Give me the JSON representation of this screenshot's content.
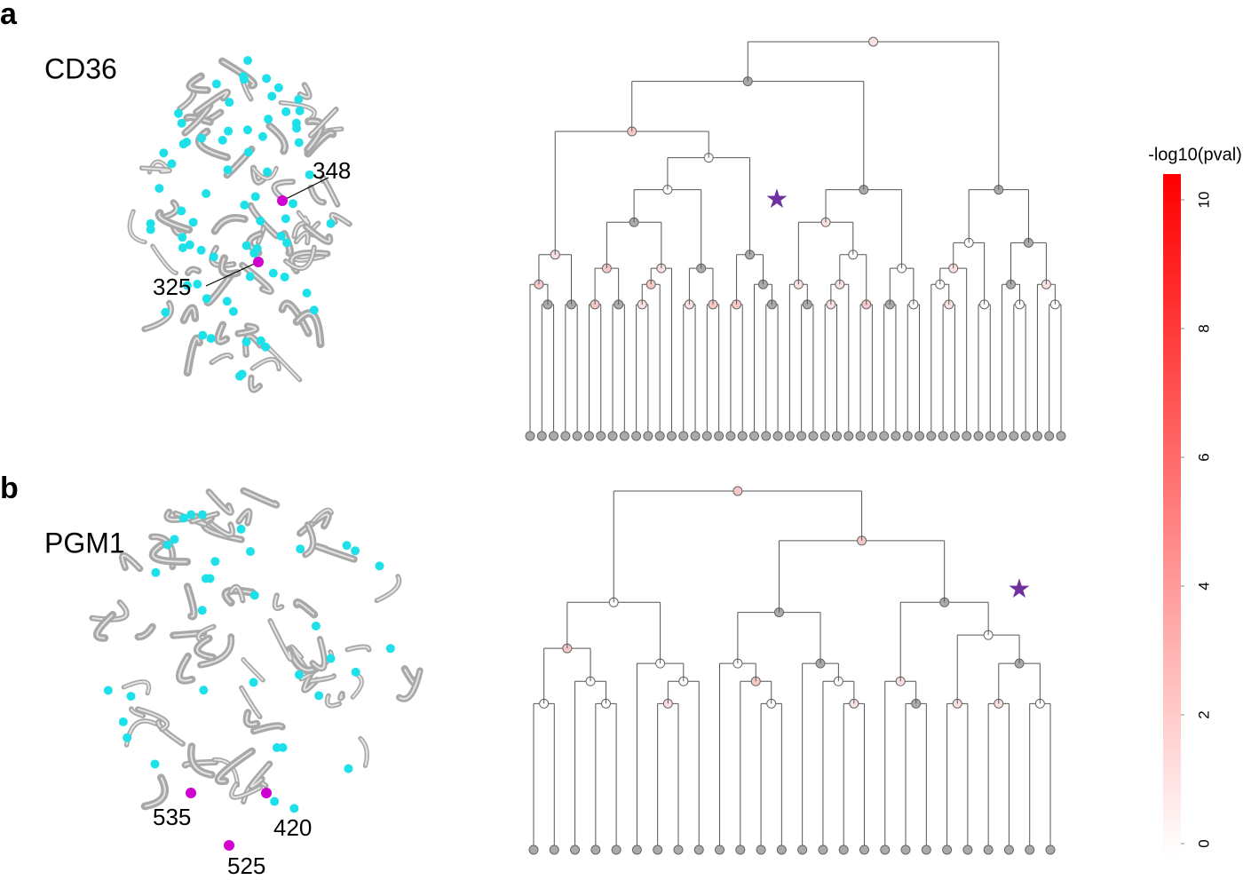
{
  "panels": [
    {
      "label": "a",
      "protein": "CD36",
      "residues": [
        "348",
        "325"
      ]
    },
    {
      "label": "b",
      "protein": "PGM1",
      "residues": [
        "535",
        "420",
        "525"
      ]
    }
  ],
  "colorbar": {
    "title": "-log10(pval)",
    "lim": [
      0,
      10.4
    ],
    "ticks": [
      0,
      2,
      4,
      6,
      8,
      10
    ]
  }
}
